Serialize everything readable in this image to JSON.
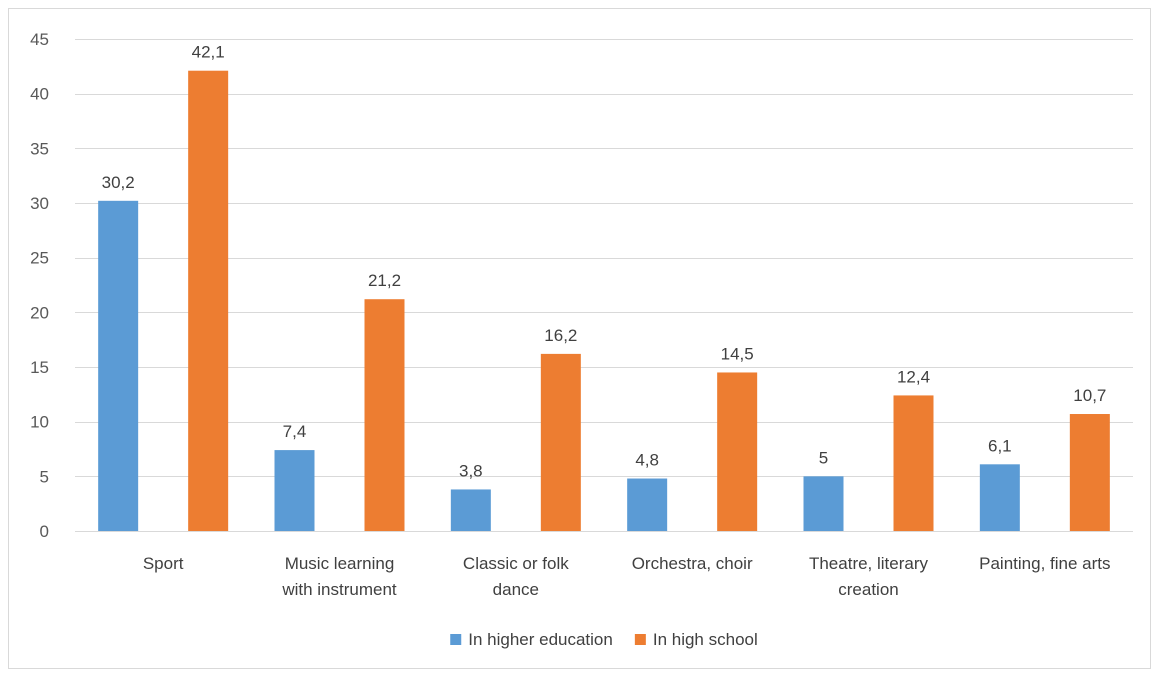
{
  "chart_data": {
    "type": "bar",
    "categories": [
      [
        "Sport"
      ],
      [
        "Music learning",
        "with instrument"
      ],
      [
        "Classic or folk",
        "dance"
      ],
      [
        "Orchestra, choir"
      ],
      [
        "Theatre, literary",
        "creation"
      ],
      [
        "Painting, fine arts"
      ]
    ],
    "series": [
      {
        "name": "In higher education",
        "color": "#5b9bd5",
        "values": [
          30.2,
          7.4,
          3.8,
          4.8,
          5,
          6.1
        ],
        "labels": [
          "30,2",
          "7,4",
          "3,8",
          "4,8",
          "5",
          "6,1"
        ]
      },
      {
        "name": "In high school",
        "color": "#ed7d31",
        "values": [
          42.1,
          21.2,
          16.2,
          14.5,
          12.4,
          10.7
        ],
        "labels": [
          "42,1",
          "21,2",
          "16,2",
          "14,5",
          "12,4",
          "10,7"
        ]
      }
    ],
    "ylim": [
      0,
      45
    ],
    "yticks": [
      0,
      5,
      10,
      15,
      20,
      25,
      30,
      35,
      40,
      45
    ],
    "grid": true,
    "legend_position": "bottom"
  }
}
